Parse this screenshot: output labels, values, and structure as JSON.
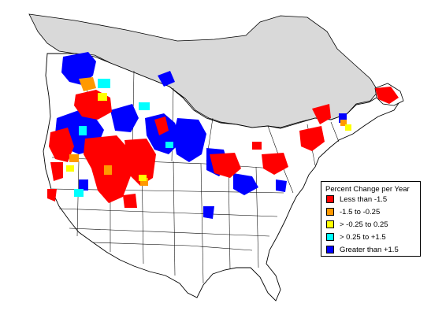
{
  "legend": {
    "title": "Percent Change per Year",
    "items": [
      {
        "label": "Less than -1.5",
        "color": "#ff0000"
      },
      {
        "label": "-1.5 to -0.25",
        "color": "#ff9900"
      },
      {
        "label": "> -0.25 to 0.25",
        "color": "#ffff00"
      },
      {
        "label": "> 0.25 to +1.5",
        "color": "#00ffff"
      },
      {
        "label": "Greater than +1.5",
        "color": "#0000ff"
      }
    ]
  },
  "map": {
    "region": "North America (Canada and United States)",
    "no_data_color": "#d9d9d9",
    "boundary_color": "#000000"
  }
}
